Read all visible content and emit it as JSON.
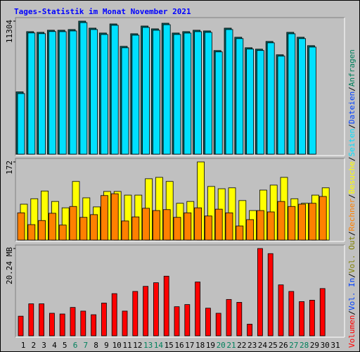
{
  "chart_data": {
    "type": "bar",
    "title": "Tages-Statistik im Monat November 2021",
    "categories": [
      "1",
      "2",
      "3",
      "4",
      "5",
      "6",
      "7",
      "8",
      "9",
      "10",
      "11",
      "12",
      "13",
      "14",
      "15",
      "16",
      "17",
      "18",
      "19",
      "20",
      "21",
      "22",
      "23",
      "24",
      "25",
      "26",
      "27",
      "28",
      "29",
      "30",
      "31"
    ],
    "category_colors": [
      "#000000",
      "#000000",
      "#000000",
      "#000000",
      "#000000",
      "#00805c",
      "#00805c",
      "#000000",
      "#000000",
      "#000000",
      "#000000",
      "#000000",
      "#00805c",
      "#00805c",
      "#000000",
      "#000000",
      "#000000",
      "#000000",
      "#000000",
      "#00805c",
      "#00805c",
      "#000000",
      "#000000",
      "#000000",
      "#000000",
      "#000000",
      "#00805c",
      "#00805c",
      "#000000",
      "#000000",
      "#000000"
    ],
    "panels": [
      {
        "ylim": [
          0,
          11304
        ],
        "yticks": [
          11304
        ],
        "series": [
          {
            "name": "Anfragen",
            "color": "#006868",
            "values": [
              5295,
              10412,
              10352,
              10531,
              10531,
              10590,
              11304,
              10709,
              10293,
              11066,
              9162,
              10233,
              10888,
              10650,
              11125,
              10293,
              10412,
              10531,
              10471,
              8805,
              10709,
              9935,
              9043,
              8924,
              9578,
              8448,
              10352,
              9935,
              9222,
              null,
              null
            ]
          },
          {
            "name": "Seiten",
            "color": "#00e0ff",
            "values": [
              5150,
              10300,
              10240,
              10420,
              10410,
              10470,
              11180,
              10590,
              10170,
              10950,
              9040,
              10110,
              10770,
              10530,
              11000,
              10170,
              10290,
              10410,
              10350,
              8690,
              10590,
              9820,
              8930,
              8810,
              9460,
              8330,
              10230,
              9820,
              9100,
              null,
              null
            ]
          }
        ]
      },
      {
        "ylim": [
          0,
          172
        ],
        "yticks": [
          172
        ],
        "series": [
          {
            "name": "Besuche",
            "color": "#ffff00",
            "values": [
              79,
              91,
              108,
              85,
              71,
              129,
              93,
              73,
              107,
              107,
              99,
              99,
              135,
              138,
              129,
              81,
              85,
              172,
              118,
              113,
              115,
              87,
              65,
              110,
              121,
              138,
              91,
              81,
              99,
              115,
              null
            ]
          },
          {
            "name": "Rechner",
            "color": "#ff8000",
            "values": [
              60,
              34,
              43,
              59,
              33,
              74,
              50,
              56,
              98,
              102,
              42,
              51,
              70,
              65,
              67,
              50,
              60,
              71,
              53,
              68,
              60,
              31,
              45,
              65,
              62,
              85,
              74,
              79,
              81,
              96,
              null
            ]
          }
        ]
      },
      {
        "ylim": [
          0,
          20.24
        ],
        "yticks": [
          {
            "value": 20.24,
            "label": "20.24 MB"
          }
        ],
        "series": [
          {
            "name": "Volumen",
            "color": "#ff0000",
            "values": [
              4.55,
              7.42,
              7.42,
              5.23,
              5.06,
              6.58,
              5.73,
              4.89,
              7.59,
              9.78,
              5.73,
              10.29,
              11.47,
              12.31,
              13.83,
              6.75,
              7.25,
              12.48,
              6.41,
              5.23,
              8.43,
              7.76,
              2.7,
              20.24,
              19.06,
              11.81,
              10.29,
              7.93,
              8.26,
              10.96,
              null
            ]
          }
        ]
      }
    ],
    "separator": "/",
    "legend": [
      {
        "label": "Volumen",
        "color": "#ff0000"
      },
      {
        "label": "Vol. In",
        "color": "#0040ff"
      },
      {
        "label": "Vol. Out",
        "color": "#808000"
      },
      {
        "label": "Rechner",
        "color": "#ff8000"
      },
      {
        "label": "Besuche",
        "color": "#ffff00"
      },
      {
        "label": "Seiten",
        "color": "#00e0ff"
      },
      {
        "label": "Dateien",
        "color": "#0040ff"
      },
      {
        "label": "Anfragen",
        "color": "#00805c"
      }
    ]
  }
}
